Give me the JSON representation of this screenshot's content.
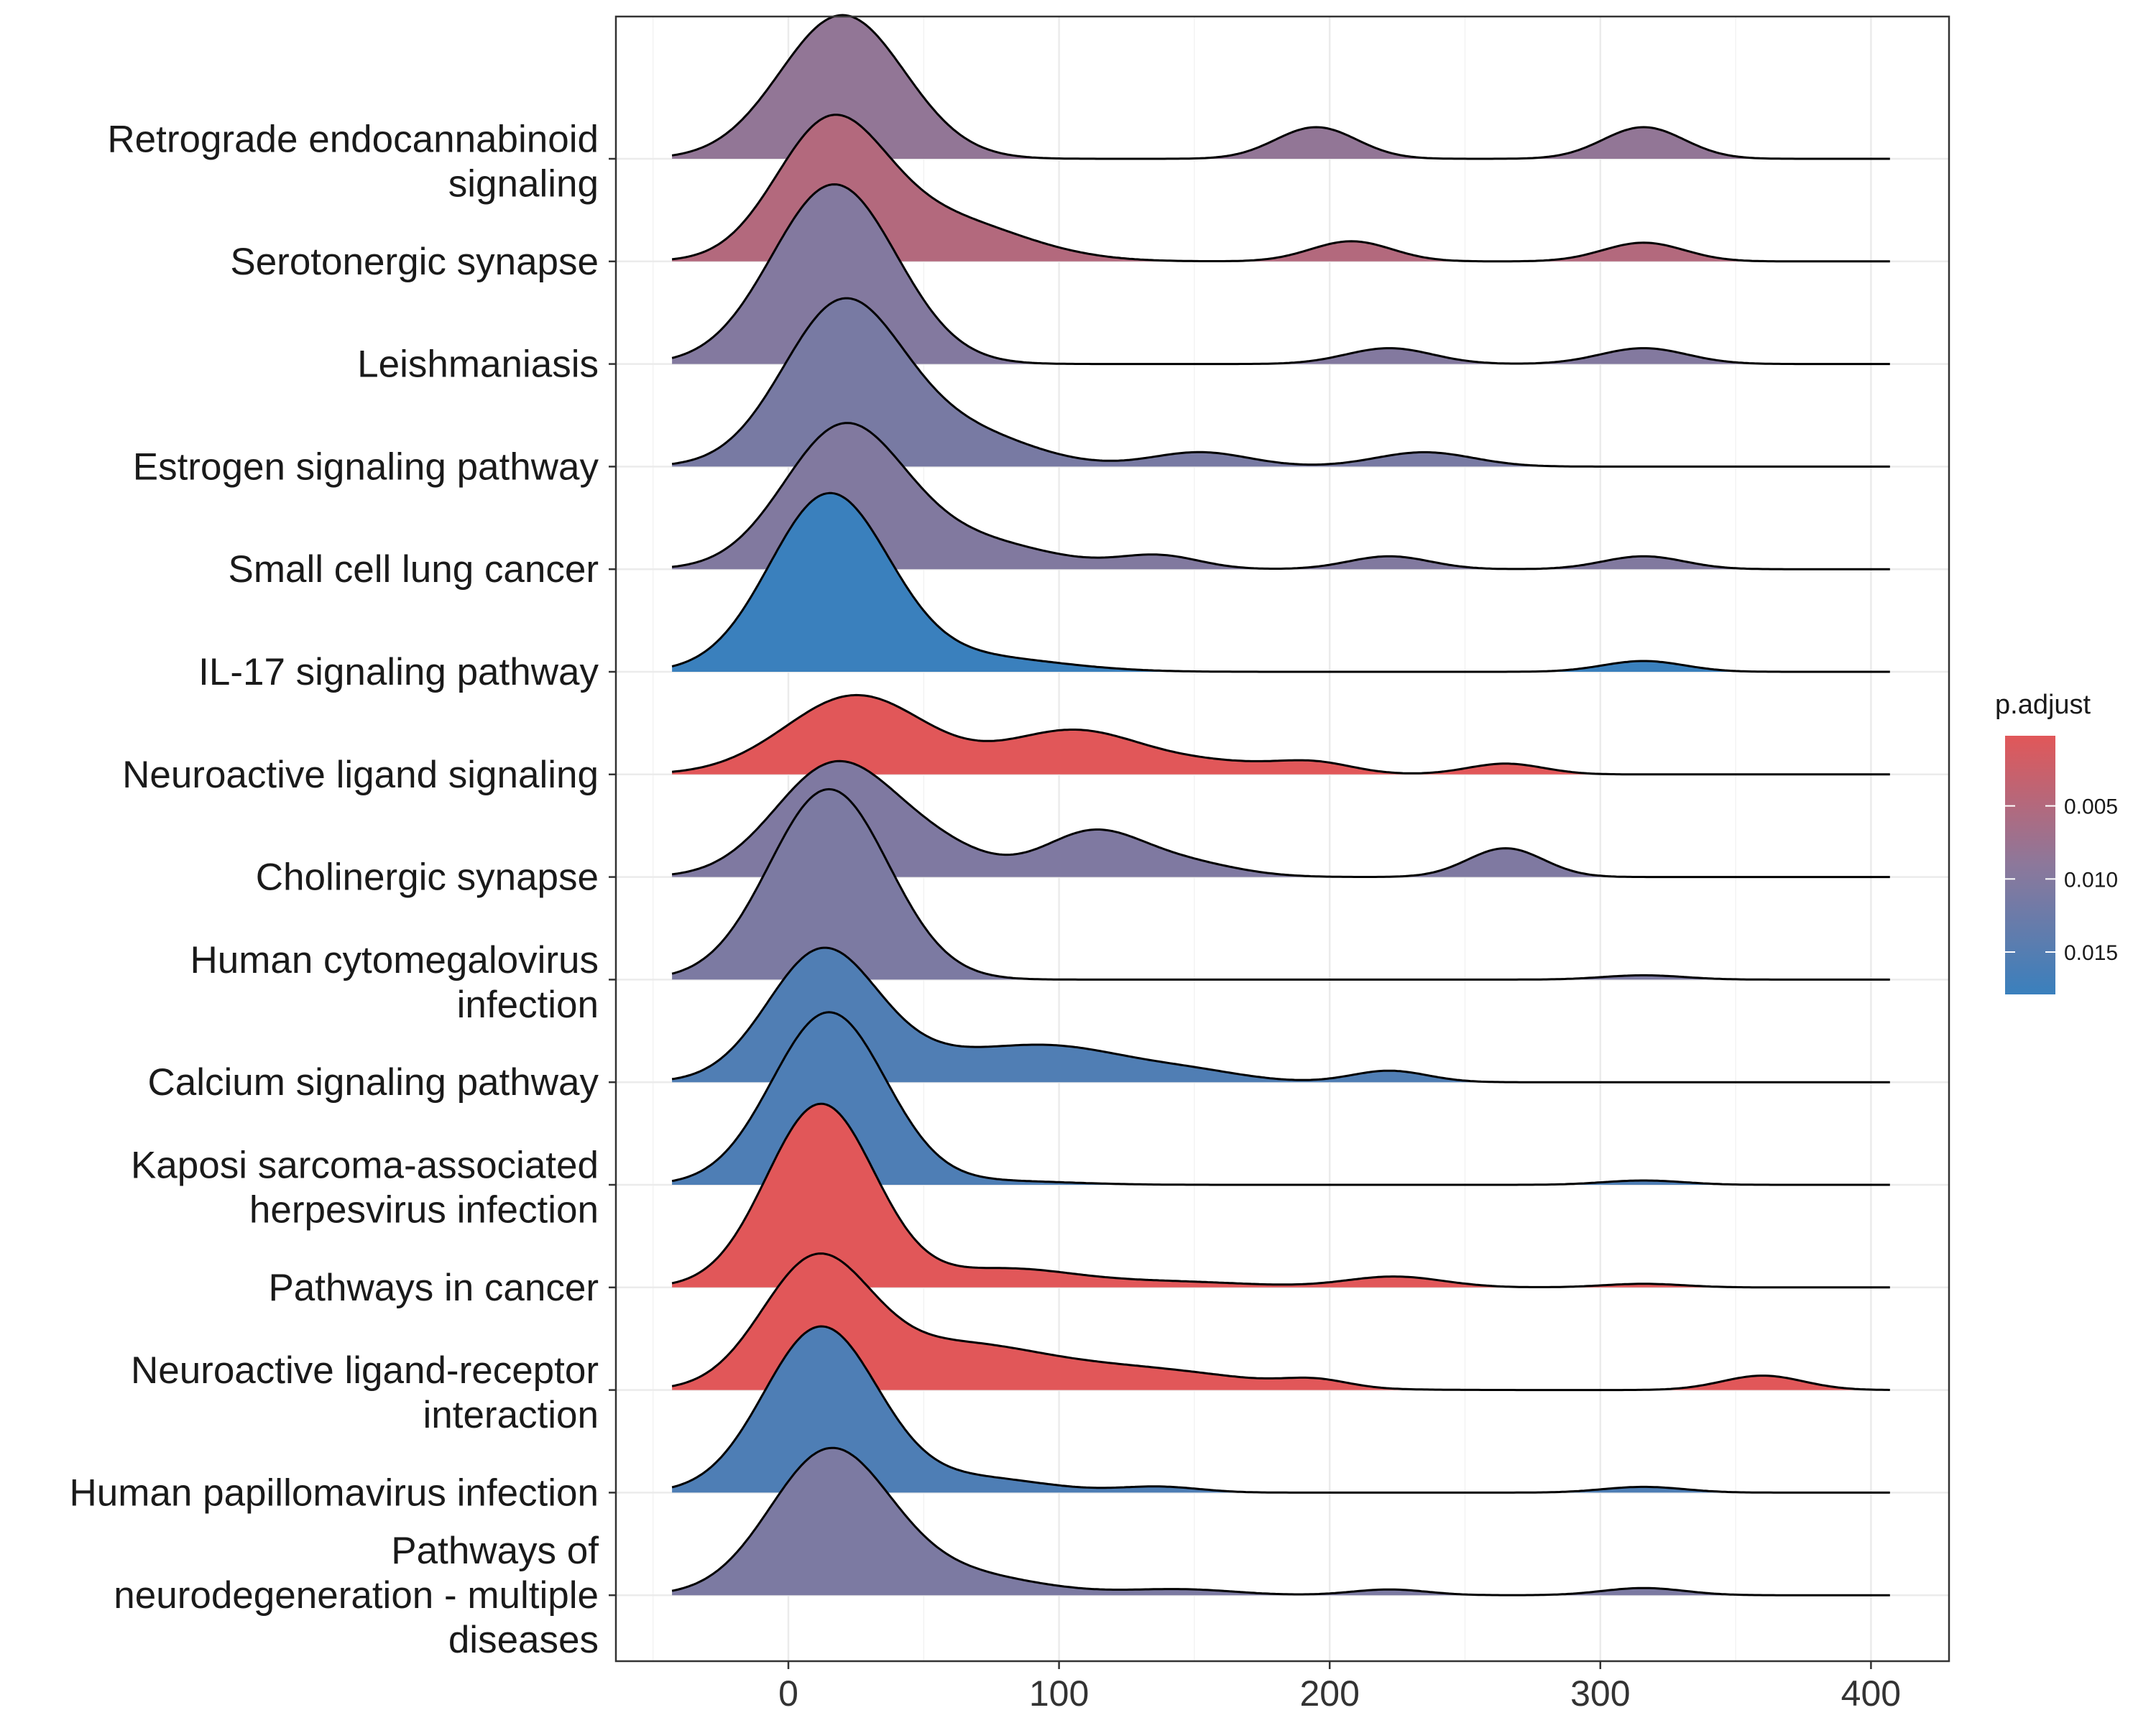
{
  "chart_data": {
    "type": "ridgeline",
    "xlim": [
      -65,
      430
    ],
    "x_ticks": [
      0,
      100,
      200,
      300,
      400
    ],
    "x_range": [
      -43,
      407
    ],
    "xlabel": "",
    "ylabel": "",
    "grid": true,
    "legend": {
      "title": "p.adjust",
      "placement": "right",
      "range": [
        0.0002,
        0.0179
      ],
      "ticks": [
        {
          "value": 0.005,
          "label": "0.005"
        },
        {
          "value": 0.01,
          "label": "0.010"
        },
        {
          "value": 0.015,
          "label": "0.015"
        }
      ],
      "color_low": "#E15759",
      "color_high": "#3A80BD"
    },
    "series": [
      {
        "name": "Retrograde endocannabinoid signaling",
        "label_lines": [
          "Retrograde endocannabinoid",
          "signaling"
        ],
        "p_adjust": 0.0084,
        "peaks": [
          {
            "mu": 20,
            "sd": 23,
            "a": 2.0
          },
          {
            "mu": 195,
            "sd": 15,
            "a": 0.44
          },
          {
            "mu": 316,
            "sd": 15,
            "a": 0.44
          }
        ]
      },
      {
        "name": "Serotonergic synapse",
        "label_lines": [
          "Serotonergic synapse"
        ],
        "p_adjust": 0.005,
        "peaks": [
          {
            "mu": 15,
            "sd": 20,
            "a": 1.78
          },
          {
            "mu": 55,
            "sd": 30,
            "a": 0.6
          },
          {
            "mu": 208,
            "sd": 15,
            "a": 0.28
          },
          {
            "mu": 316,
            "sd": 15,
            "a": 0.26
          }
        ]
      },
      {
        "name": "Leishmaniasis",
        "label_lines": [
          "Leishmaniasis"
        ],
        "p_adjust": 0.01,
        "peaks": [
          {
            "mu": 17,
            "sd": 23,
            "a": 2.5
          },
          {
            "mu": 222,
            "sd": 16,
            "a": 0.22
          },
          {
            "mu": 316,
            "sd": 16,
            "a": 0.22
          }
        ]
      },
      {
        "name": "Estrogen signaling pathway",
        "label_lines": [
          "Estrogen signaling pathway"
        ],
        "p_adjust": 0.0112,
        "peaks": [
          {
            "mu": 20,
            "sd": 22,
            "a": 2.25
          },
          {
            "mu": 65,
            "sd": 25,
            "a": 0.45
          },
          {
            "mu": 152,
            "sd": 18,
            "a": 0.2
          },
          {
            "mu": 235,
            "sd": 18,
            "a": 0.2
          }
        ]
      },
      {
        "name": "Small cell lung cancer",
        "label_lines": [
          "Small cell lung cancer"
        ],
        "p_adjust": 0.0102,
        "peaks": [
          {
            "mu": 20,
            "sd": 22,
            "a": 1.9
          },
          {
            "mu": 65,
            "sd": 30,
            "a": 0.4
          },
          {
            "mu": 137,
            "sd": 15,
            "a": 0.18
          },
          {
            "mu": 222,
            "sd": 15,
            "a": 0.18
          },
          {
            "mu": 316,
            "sd": 15,
            "a": 0.18
          }
        ]
      },
      {
        "name": "IL-17 signaling pathway",
        "label_lines": [
          "IL-17 signaling pathway"
        ],
        "p_adjust": 0.0179,
        "peaks": [
          {
            "mu": 15,
            "sd": 22,
            "a": 2.45
          },
          {
            "mu": 70,
            "sd": 30,
            "a": 0.2
          },
          {
            "mu": 316,
            "sd": 15,
            "a": 0.15
          }
        ]
      },
      {
        "name": "Neuroactive ligand signaling",
        "label_lines": [
          "Neuroactive ligand signaling"
        ],
        "p_adjust": 0.0002,
        "peaks": [
          {
            "mu": 25,
            "sd": 26,
            "a": 1.1
          },
          {
            "mu": 105,
            "sd": 25,
            "a": 0.6
          },
          {
            "mu": 160,
            "sd": 25,
            "a": 0.15
          },
          {
            "mu": 195,
            "sd": 14,
            "a": 0.13
          },
          {
            "mu": 265,
            "sd": 14,
            "a": 0.15
          }
        ]
      },
      {
        "name": "Cholinergic synapse",
        "label_lines": [
          "Cholinergic synapse"
        ],
        "p_adjust": 0.0105,
        "peaks": [
          {
            "mu": 17,
            "sd": 22,
            "a": 1.55
          },
          {
            "mu": 55,
            "sd": 20,
            "a": 0.35
          },
          {
            "mu": 112,
            "sd": 18,
            "a": 0.6
          },
          {
            "mu": 145,
            "sd": 20,
            "a": 0.2
          },
          {
            "mu": 265,
            "sd": 14,
            "a": 0.4
          }
        ]
      },
      {
        "name": "Human cytomegalovirus infection",
        "label_lines": [
          "Human cytomegalovirus",
          "infection"
        ],
        "p_adjust": 0.0108,
        "peaks": [
          {
            "mu": 15,
            "sd": 22,
            "a": 2.65
          },
          {
            "mu": 316,
            "sd": 15,
            "a": 0.06
          }
        ]
      },
      {
        "name": "Calcium signaling pathway",
        "label_lines": [
          "Calcium signaling pathway"
        ],
        "p_adjust": 0.0155,
        "peaks": [
          {
            "mu": 12,
            "sd": 20,
            "a": 1.7
          },
          {
            "mu": 45,
            "sd": 30,
            "a": 0.3
          },
          {
            "mu": 100,
            "sd": 28,
            "a": 0.45
          },
          {
            "mu": 150,
            "sd": 20,
            "a": 0.12
          },
          {
            "mu": 222,
            "sd": 14,
            "a": 0.16
          }
        ]
      },
      {
        "name": "Kaposi sarcoma-associated herpesvirus infection",
        "label_lines": [
          "Kaposi sarcoma-associated",
          "herpesvirus infection"
        ],
        "p_adjust": 0.0157,
        "peaks": [
          {
            "mu": 15,
            "sd": 21,
            "a": 2.4
          },
          {
            "mu": 80,
            "sd": 25,
            "a": 0.05
          },
          {
            "mu": 316,
            "sd": 15,
            "a": 0.06
          }
        ]
      },
      {
        "name": "Pathways in cancer",
        "label_lines": [
          "Pathways in cancer"
        ],
        "p_adjust": 0.0002,
        "peaks": [
          {
            "mu": 12,
            "sd": 20,
            "a": 2.55
          },
          {
            "mu": 80,
            "sd": 25,
            "a": 0.25
          },
          {
            "mu": 140,
            "sd": 30,
            "a": 0.08
          },
          {
            "mu": 224,
            "sd": 18,
            "a": 0.15
          },
          {
            "mu": 316,
            "sd": 15,
            "a": 0.05
          }
        ]
      },
      {
        "name": "Neuroactive ligand-receptor interaction",
        "label_lines": [
          "Neuroactive ligand-receptor",
          "interaction"
        ],
        "p_adjust": 0.0002,
        "peaks": [
          {
            "mu": 10,
            "sd": 20,
            "a": 1.75
          },
          {
            "mu": 60,
            "sd": 30,
            "a": 0.55
          },
          {
            "mu": 125,
            "sd": 40,
            "a": 0.3
          },
          {
            "mu": 195,
            "sd": 12,
            "a": 0.1
          },
          {
            "mu": 360,
            "sd": 15,
            "a": 0.2
          }
        ]
      },
      {
        "name": "Human papillomavirus infection",
        "label_lines": [
          "Human papillomavirus infection"
        ],
        "p_adjust": 0.0157,
        "peaks": [
          {
            "mu": 12,
            "sd": 21,
            "a": 2.3
          },
          {
            "mu": 70,
            "sd": 25,
            "a": 0.2
          },
          {
            "mu": 137,
            "sd": 15,
            "a": 0.08
          },
          {
            "mu": 316,
            "sd": 15,
            "a": 0.08
          }
        ]
      },
      {
        "name": "Pathways of neurodegeneration - multiple diseases",
        "label_lines": [
          "Pathways of",
          "neurodegeneration - multiple",
          "diseases"
        ],
        "p_adjust": 0.0108,
        "peaks": [
          {
            "mu": 15,
            "sd": 22,
            "a": 1.95
          },
          {
            "mu": 60,
            "sd": 30,
            "a": 0.3
          },
          {
            "mu": 145,
            "sd": 20,
            "a": 0.08
          },
          {
            "mu": 222,
            "sd": 14,
            "a": 0.08
          },
          {
            "mu": 316,
            "sd": 15,
            "a": 0.1
          }
        ]
      }
    ]
  }
}
